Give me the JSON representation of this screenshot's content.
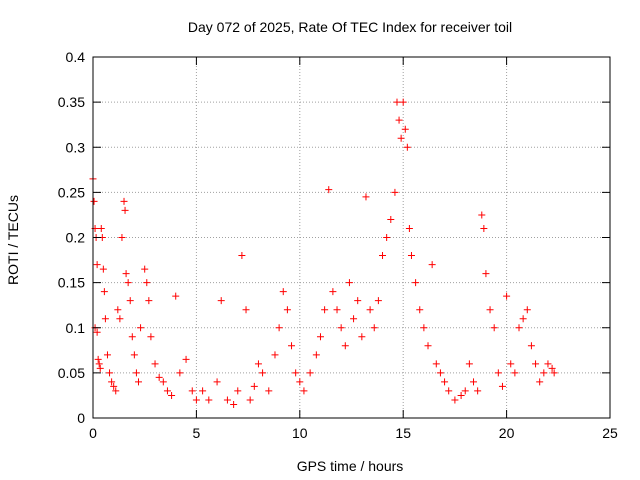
{
  "chart_data": {
    "type": "scatter",
    "title": "Day 072 of 2025, Rate Of TEC Index for receiver toil",
    "xlabel": "GPS time / hours",
    "ylabel": "ROTI / TECUs",
    "xlim": [
      0,
      25
    ],
    "ylim": [
      0,
      0.4
    ],
    "x_ticks": [
      0,
      5,
      10,
      15,
      20,
      25
    ],
    "y_ticks": [
      0,
      0.05,
      0.1,
      0.15,
      0.2,
      0.25,
      0.3,
      0.35,
      0.4
    ],
    "x_tick_labels": [
      "0",
      "5",
      "10",
      "15",
      "20",
      "25"
    ],
    "y_tick_labels": [
      "0",
      "0.05",
      "0.1",
      "0.15",
      "0.2",
      "0.25",
      "0.3",
      "0.35",
      "0.4"
    ],
    "grid": true,
    "marker": "+",
    "color": "#ff0000",
    "series": [
      {
        "name": "ROTI",
        "points": [
          [
            0.0,
            0.265
          ],
          [
            0.05,
            0.24
          ],
          [
            0.1,
            0.21
          ],
          [
            0.15,
            0.2
          ],
          [
            0.2,
            0.17
          ],
          [
            0.1,
            0.1
          ],
          [
            0.2,
            0.095
          ],
          [
            0.25,
            0.065
          ],
          [
            0.3,
            0.06
          ],
          [
            0.35,
            0.055
          ],
          [
            0.4,
            0.21
          ],
          [
            0.45,
            0.2
          ],
          [
            0.5,
            0.165
          ],
          [
            0.55,
            0.14
          ],
          [
            0.6,
            0.11
          ],
          [
            0.7,
            0.07
          ],
          [
            0.8,
            0.05
          ],
          [
            0.9,
            0.04
          ],
          [
            1.0,
            0.035
          ],
          [
            1.1,
            0.03
          ],
          [
            1.2,
            0.12
          ],
          [
            1.3,
            0.11
          ],
          [
            1.4,
            0.2
          ],
          [
            1.5,
            0.24
          ],
          [
            1.55,
            0.23
          ],
          [
            1.6,
            0.16
          ],
          [
            1.7,
            0.15
          ],
          [
            1.8,
            0.13
          ],
          [
            1.9,
            0.09
          ],
          [
            2.0,
            0.07
          ],
          [
            2.1,
            0.05
          ],
          [
            2.2,
            0.04
          ],
          [
            2.3,
            0.1
          ],
          [
            2.5,
            0.165
          ],
          [
            2.6,
            0.15
          ],
          [
            2.7,
            0.13
          ],
          [
            2.8,
            0.09
          ],
          [
            3.0,
            0.06
          ],
          [
            3.2,
            0.045
          ],
          [
            3.4,
            0.04
          ],
          [
            3.6,
            0.03
          ],
          [
            3.8,
            0.025
          ],
          [
            4.0,
            0.135
          ],
          [
            4.2,
            0.05
          ],
          [
            4.5,
            0.065
          ],
          [
            4.8,
            0.03
          ],
          [
            5.0,
            0.02
          ],
          [
            5.3,
            0.03
          ],
          [
            5.6,
            0.02
          ],
          [
            6.0,
            0.04
          ],
          [
            6.2,
            0.13
          ],
          [
            6.5,
            0.02
          ],
          [
            6.8,
            0.015
          ],
          [
            7.0,
            0.03
          ],
          [
            7.2,
            0.18
          ],
          [
            7.4,
            0.12
          ],
          [
            7.6,
            0.02
          ],
          [
            7.8,
            0.035
          ],
          [
            8.0,
            0.06
          ],
          [
            8.2,
            0.05
          ],
          [
            8.5,
            0.03
          ],
          [
            8.8,
            0.07
          ],
          [
            9.0,
            0.1
          ],
          [
            9.2,
            0.14
          ],
          [
            9.4,
            0.12
          ],
          [
            9.6,
            0.08
          ],
          [
            9.8,
            0.05
          ],
          [
            10.0,
            0.04
          ],
          [
            10.2,
            0.03
          ],
          [
            10.5,
            0.05
          ],
          [
            10.8,
            0.07
          ],
          [
            11.0,
            0.09
          ],
          [
            11.2,
            0.12
          ],
          [
            11.4,
            0.253
          ],
          [
            11.6,
            0.14
          ],
          [
            11.8,
            0.12
          ],
          [
            12.0,
            0.1
          ],
          [
            12.2,
            0.08
          ],
          [
            12.4,
            0.15
          ],
          [
            12.6,
            0.11
          ],
          [
            12.8,
            0.13
          ],
          [
            13.0,
            0.09
          ],
          [
            13.2,
            0.245
          ],
          [
            13.4,
            0.12
          ],
          [
            13.6,
            0.1
          ],
          [
            13.8,
            0.13
          ],
          [
            14.0,
            0.18
          ],
          [
            14.2,
            0.2
          ],
          [
            14.4,
            0.22
          ],
          [
            14.6,
            0.25
          ],
          [
            14.7,
            0.35
          ],
          [
            14.8,
            0.33
          ],
          [
            14.9,
            0.31
          ],
          [
            15.0,
            0.35
          ],
          [
            15.1,
            0.32
          ],
          [
            15.2,
            0.3
          ],
          [
            15.3,
            0.21
          ],
          [
            15.4,
            0.18
          ],
          [
            15.6,
            0.15
          ],
          [
            15.8,
            0.12
          ],
          [
            16.0,
            0.1
          ],
          [
            16.2,
            0.08
          ],
          [
            16.4,
            0.17
          ],
          [
            16.6,
            0.06
          ],
          [
            16.8,
            0.05
          ],
          [
            17.0,
            0.04
          ],
          [
            17.2,
            0.03
          ],
          [
            17.5,
            0.02
          ],
          [
            17.8,
            0.025
          ],
          [
            18.0,
            0.03
          ],
          [
            18.2,
            0.06
          ],
          [
            18.4,
            0.04
          ],
          [
            18.6,
            0.03
          ],
          [
            18.8,
            0.225
          ],
          [
            18.9,
            0.21
          ],
          [
            19.0,
            0.16
          ],
          [
            19.2,
            0.12
          ],
          [
            19.4,
            0.1
          ],
          [
            19.6,
            0.05
          ],
          [
            19.8,
            0.035
          ],
          [
            20.0,
            0.135
          ],
          [
            20.2,
            0.06
          ],
          [
            20.4,
            0.05
          ],
          [
            20.6,
            0.1
          ],
          [
            20.8,
            0.11
          ],
          [
            21.0,
            0.12
          ],
          [
            21.2,
            0.08
          ],
          [
            21.4,
            0.06
          ],
          [
            21.6,
            0.04
          ],
          [
            21.8,
            0.05
          ],
          [
            22.0,
            0.06
          ],
          [
            22.2,
            0.055
          ],
          [
            22.3,
            0.05
          ]
        ]
      }
    ]
  }
}
